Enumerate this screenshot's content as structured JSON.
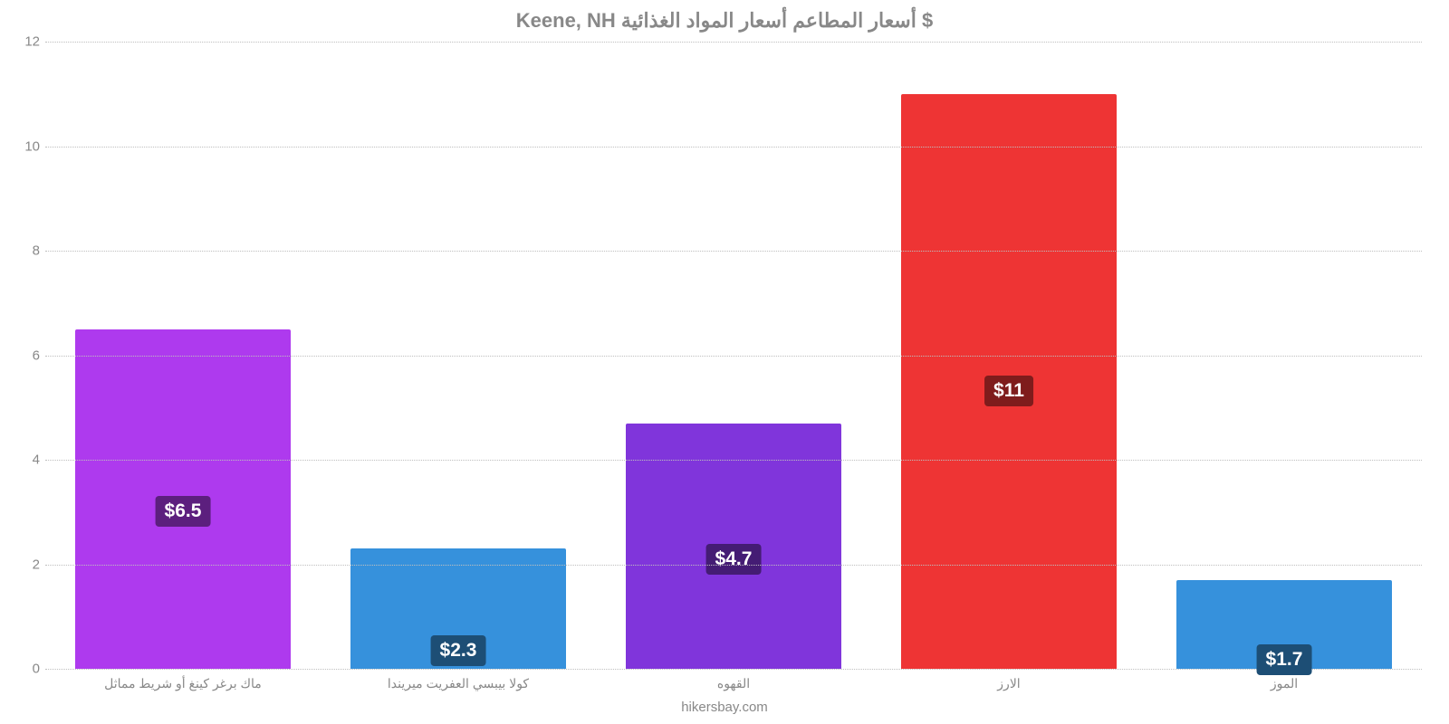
{
  "chart": {
    "type": "bar",
    "title": "Keene, NH أسعار المطاعم أسعار المواد الغذائية $",
    "title_fontsize": 22,
    "title_color": "#888888",
    "attribution": "hikersbay.com",
    "attribution_fontsize": 15,
    "background_color": "#ffffff",
    "grid_color": "#bfbfbf",
    "axis_text_color": "#888888",
    "ylim": [
      0,
      12
    ],
    "ytick_step": 2,
    "ytick_fontsize": 15,
    "xtick_fontsize": 14,
    "bar_width_pct": 78,
    "label_fontsize": 21,
    "label_text_color": "#ffffff",
    "categories": [
      "ماك برغر كينغ أو شريط مماثل",
      "كولا بيبسي العفريت ميريندا",
      "القهوه",
      "الارز",
      "الموز"
    ],
    "values": [
      6.5,
      2.3,
      4.7,
      11,
      1.7
    ],
    "value_labels": [
      "$6.5",
      "$2.3",
      "$4.7",
      "$11",
      "$1.7"
    ],
    "bar_colors": [
      "#ae3aee",
      "#3691dc",
      "#8035db",
      "#ee3434",
      "#3691dc"
    ],
    "label_bg_colors": [
      "#5c1f7e",
      "#1d4e75",
      "#441c74",
      "#7f1c1c",
      "#1d4e75"
    ],
    "label_offsets_pct": [
      49,
      72,
      49,
      49,
      72
    ]
  }
}
